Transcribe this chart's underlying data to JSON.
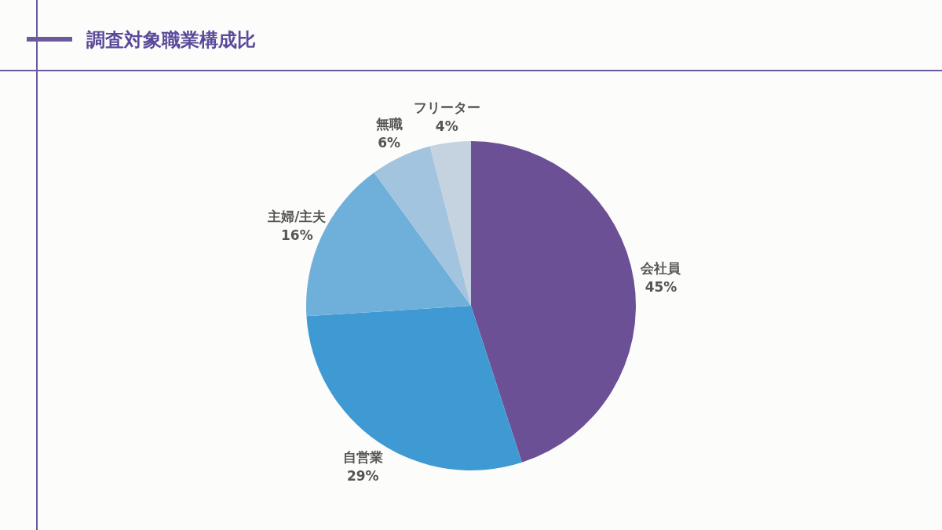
{
  "chart_data": {
    "type": "pie",
    "title": "調査対象職業構成比",
    "categories": [
      "会社員",
      "自営業",
      "主婦/主夫",
      "無職",
      "フリーター"
    ],
    "values": [
      45,
      29,
      16,
      6,
      4
    ],
    "value_labels": [
      "45%",
      "29%",
      "16%",
      "6%",
      "4%"
    ],
    "colors": [
      "#6b5096",
      "#3f9ad3",
      "#6fb0da",
      "#a3c4de",
      "#c5d2e0"
    ],
    "legend": false
  }
}
